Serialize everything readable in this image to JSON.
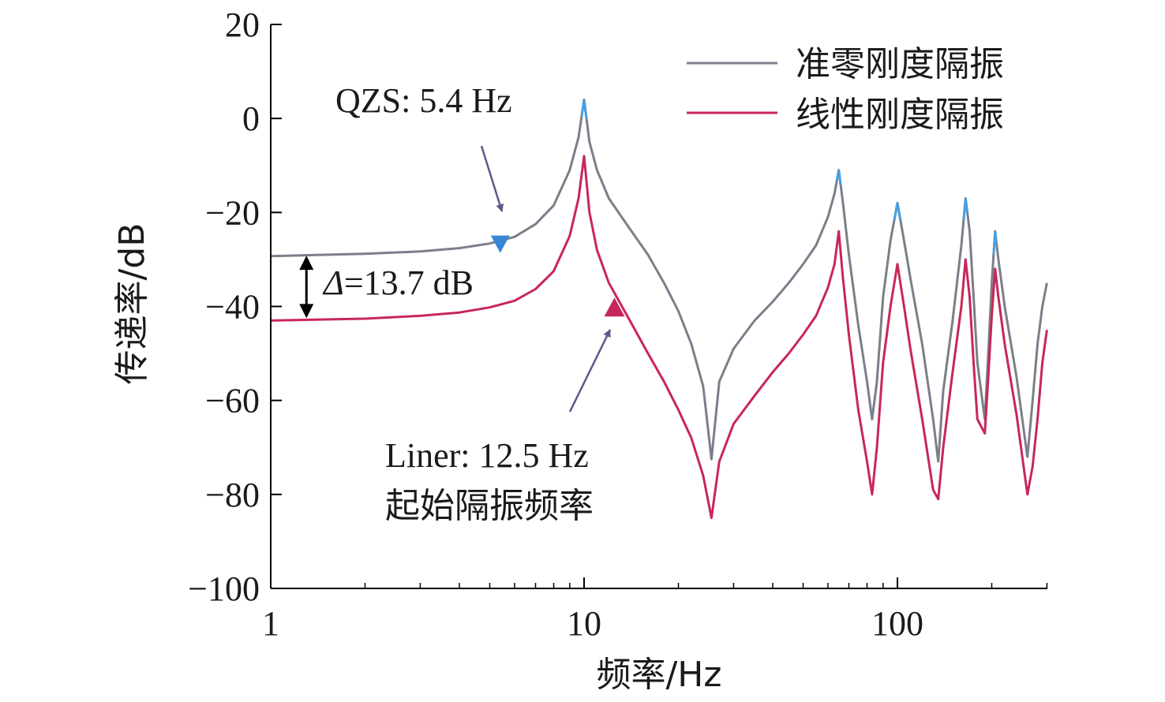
{
  "chart_data": {
    "type": "line",
    "xscale": "log",
    "xlim": [
      1,
      300
    ],
    "ylim": [
      -100,
      20
    ],
    "xticks": [
      1,
      10,
      100
    ],
    "xtick_labels": [
      "1",
      "10",
      "100"
    ],
    "yticks": [
      20,
      0,
      -20,
      -40,
      -60,
      -80,
      -100
    ],
    "ytick_labels": [
      "20",
      "0",
      "−20",
      "−40",
      "−60",
      "−80",
      "−100"
    ],
    "xlabel": "频率/Hz",
    "ylabel": "传递率/dB",
    "legend_position": "top-right",
    "grid": false,
    "series": [
      {
        "name": "准零刚度隔振",
        "color": "#7a7f8a",
        "peak_color": "#4a9fe0",
        "x": [
          1,
          2,
          3,
          4,
          5,
          6,
          7,
          8,
          9,
          9.6,
          10,
          10.4,
          11,
          12,
          14,
          16,
          18,
          20,
          22,
          24,
          25.5,
          27,
          30,
          35,
          40,
          45,
          50,
          55,
          60,
          63,
          65,
          67,
          70,
          75,
          80,
          83,
          86,
          90,
          95,
          100,
          105,
          110,
          120,
          130,
          135,
          140,
          150,
          160,
          165,
          170,
          175,
          180,
          190,
          195,
          200,
          205,
          210,
          220,
          240,
          260,
          270,
          280,
          290,
          300
        ],
        "y": [
          -29.3,
          -28.8,
          -28.3,
          -27.6,
          -26.6,
          -25.2,
          -22.5,
          -18.5,
          -11,
          -4,
          4,
          -5,
          -11,
          -17,
          -23.5,
          -29,
          -35,
          -41,
          -48,
          -57,
          -72.5,
          -56,
          -49,
          -43,
          -39,
          -35,
          -31,
          -27,
          -21,
          -16,
          -11,
          -18,
          -29,
          -44,
          -56,
          -64,
          -56,
          -38,
          -26,
          -18,
          -26,
          -34,
          -48,
          -64,
          -73,
          -58,
          -43,
          -27,
          -17,
          -24,
          -38,
          -52,
          -64,
          -50,
          -35,
          -24,
          -30,
          -40,
          -55,
          -72,
          -60,
          -48,
          -40,
          -35
        ]
      },
      {
        "name": "线性刚度隔振",
        "color": "#c8265a",
        "x": [
          1,
          2,
          3,
          4,
          5,
          6,
          7,
          8,
          9,
          9.6,
          10,
          10.4,
          11,
          12,
          14,
          16,
          18,
          20,
          22,
          24,
          25.5,
          27,
          30,
          35,
          40,
          45,
          50,
          55,
          60,
          63,
          65,
          67,
          70,
          75,
          80,
          83,
          86,
          90,
          95,
          100,
          105,
          110,
          120,
          130,
          135,
          140,
          150,
          160,
          165,
          170,
          175,
          180,
          190,
          195,
          200,
          205,
          210,
          220,
          240,
          260,
          270,
          280,
          290,
          300
        ],
        "y": [
          -43,
          -42.6,
          -42,
          -41.3,
          -40.2,
          -38.8,
          -36.3,
          -32.5,
          -25,
          -17,
          -8,
          -20,
          -28,
          -35,
          -43,
          -50,
          -56,
          -62,
          -68,
          -76,
          -85,
          -73,
          -65,
          -59,
          -54,
          -50,
          -46,
          -42,
          -36,
          -31,
          -24,
          -34,
          -46,
          -62,
          -73,
          -80,
          -70,
          -52,
          -40,
          -31,
          -40,
          -49,
          -64,
          -79,
          -81,
          -70,
          -54,
          -40,
          -30,
          -38,
          -52,
          -64,
          -67,
          -55,
          -42,
          -32,
          -38,
          -48,
          -63,
          -80,
          -74,
          -64,
          -52,
          -45
        ]
      }
    ],
    "annotations": {
      "qzs_label": "QZS: 5.4 Hz",
      "qzs_point": {
        "x": 5.4,
        "y": -26.6
      },
      "liner_label": "Liner: 12.5 Hz",
      "liner_point": {
        "x": 12.5,
        "y": -40.3
      },
      "start_label": "起始隔振频率",
      "delta_symbol": "Δ",
      "delta_value": "=13.7 dB",
      "delta_x": 1.3,
      "delta_top": -29.2,
      "delta_bottom": -42.5
    }
  }
}
